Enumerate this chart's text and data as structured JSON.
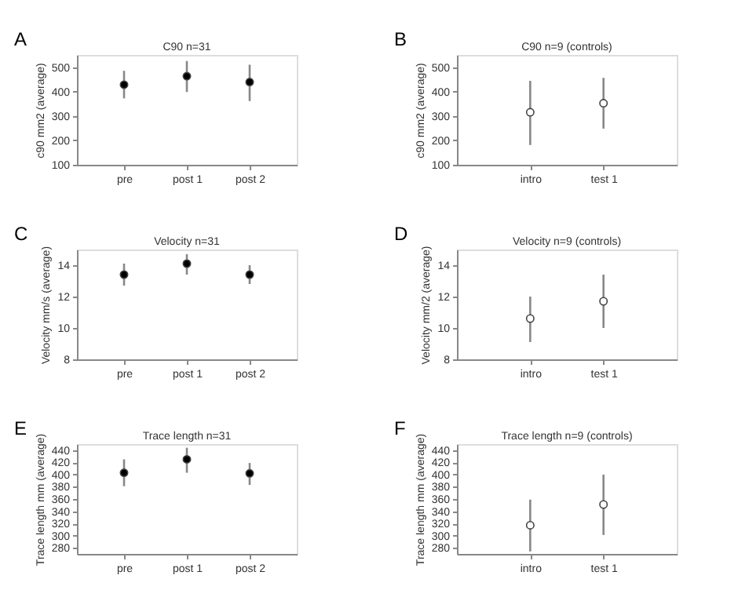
{
  "chart_data": [
    {
      "type": "scatter",
      "title": "C90 n=31",
      "annotations": [
        "A"
      ],
      "ylabel": "c90 mm2 (average)",
      "categories": [
        "pre",
        "post 1",
        "post 2"
      ],
      "marker": "circle",
      "grid": false,
      "ylim": [
        100,
        550
      ],
      "yticks": [
        100,
        200,
        300,
        400,
        500
      ],
      "series": [
        {
          "color": "#000000",
          "values": [
            428,
            463,
            439
          ],
          "errors": [
            [
              372,
              485
            ],
            [
              398,
              525
            ],
            [
              361,
              510
            ]
          ]
        }
      ]
    },
    {
      "type": "scatter",
      "title": "C90 n=9 (controls)",
      "annotations": [
        "B"
      ],
      "ylabel": "c90 mm2 (average)",
      "categories": [
        "intro",
        "test 1"
      ],
      "marker": "circle",
      "grid": false,
      "ylim": [
        100,
        550
      ],
      "yticks": [
        100,
        200,
        300,
        400,
        500
      ],
      "series": [
        {
          "color": "#ffffff",
          "values": [
            315,
            352
          ],
          "errors": [
            [
              181,
              444
            ],
            [
              248,
              456
            ]
          ]
        }
      ]
    },
    {
      "type": "scatter",
      "title": "Velocity n=31",
      "annotations": [
        "C"
      ],
      "ylabel": "Velocity mm/s (average)",
      "categories": [
        "pre",
        "post 1",
        "post 2"
      ],
      "marker": "circle",
      "grid": false,
      "ylim": [
        8,
        15
      ],
      "yticks": [
        8,
        10,
        12,
        14
      ],
      "series": [
        {
          "color": "#000000",
          "values": [
            13.4,
            14.1,
            13.4
          ],
          "errors": [
            [
              12.7,
              14.1
            ],
            [
              13.4,
              14.7
            ],
            [
              12.8,
              14.0
            ]
          ]
        }
      ]
    },
    {
      "type": "scatter",
      "title": "Velocity n=9 (controls)",
      "annotations": [
        "D"
      ],
      "ylabel": "Velocity mm/2 (average)",
      "categories": [
        "intro",
        "test 1"
      ],
      "marker": "circle",
      "grid": false,
      "ylim": [
        8,
        15
      ],
      "yticks": [
        8,
        10,
        12,
        14
      ],
      "series": [
        {
          "color": "#ffffff",
          "values": [
            10.6,
            11.7
          ],
          "errors": [
            [
              9.1,
              12.0
            ],
            [
              10.0,
              13.4
            ]
          ]
        }
      ]
    },
    {
      "type": "scatter",
      "title": "Trace length n=31",
      "annotations": [
        "E"
      ],
      "ylabel": "Trace length mm (average)",
      "categories": [
        "pre",
        "post 1",
        "post 2"
      ],
      "marker": "circle",
      "grid": false,
      "ylim": [
        270,
        450
      ],
      "yticks": [
        280,
        300,
        320,
        340,
        360,
        380,
        400,
        420,
        440
      ],
      "series": [
        {
          "color": "#000000",
          "values": [
            403,
            425,
            402
          ],
          "errors": [
            [
              381,
              425
            ],
            [
              403,
              444
            ],
            [
              383,
              419
            ]
          ]
        }
      ]
    },
    {
      "type": "scatter",
      "title": "Trace length n=9 (controls)",
      "annotations": [
        "F"
      ],
      "ylabel": "Trace length mm (average)",
      "categories": [
        "intro",
        "test 1"
      ],
      "marker": "circle",
      "grid": false,
      "ylim": [
        270,
        450
      ],
      "yticks": [
        280,
        300,
        320,
        340,
        360,
        380,
        400,
        420,
        440
      ],
      "series": [
        {
          "color": "#ffffff",
          "values": [
            317,
            351
          ],
          "errors": [
            [
              274,
              359
            ],
            [
              301,
              400
            ]
          ]
        }
      ]
    }
  ]
}
